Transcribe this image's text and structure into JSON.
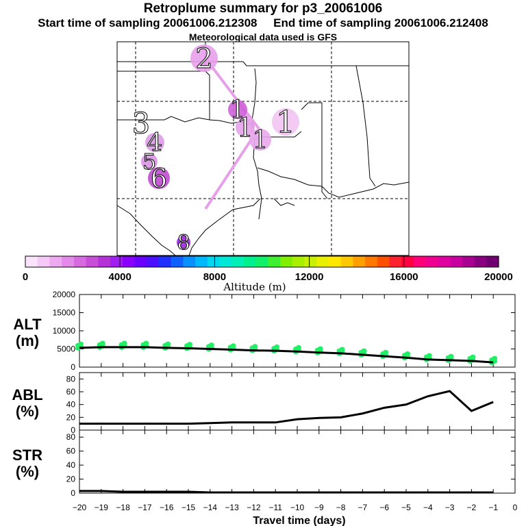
{
  "header": {
    "title": "Retroplume summary for p3_20061006",
    "start_label": "Start time of sampling 20061006.212308",
    "end_label": "End time of sampling 20061006.212408",
    "met_label": "Meteorological data used is GFS"
  },
  "map": {
    "markers": [
      {
        "label": "2",
        "color": "#e8a0ea"
      },
      {
        "label": "1",
        "color": "#cf61d8"
      },
      {
        "label": "1",
        "color": "#f2c4f2"
      },
      {
        "label": "1",
        "color": "#e6a2ea"
      },
      {
        "label": "1",
        "color": "#e8a8ec"
      },
      {
        "label": "3",
        "color": "#f0d0f4"
      },
      {
        "label": "4",
        "color": "#dc9ce6"
      },
      {
        "label": "5",
        "color": "#d894e2"
      },
      {
        "label": "6",
        "color": "#c04ed0"
      },
      {
        "label": "8",
        "color": "#9a28d8"
      }
    ]
  },
  "colorbar": {
    "axis_label": "Altitude (m)",
    "tick_labels": [
      "0",
      "4000",
      "8000",
      "12000",
      "16000",
      "20000"
    ],
    "colors": [
      "#fbe4fb",
      "#f5c8f5",
      "#eeaaf0",
      "#e48ae8",
      "#d86ae0",
      "#c84ed8",
      "#b432d8",
      "#a020f0",
      "#8a00ff",
      "#6a00ff",
      "#4a10ff",
      "#2030ff",
      "#1060ff",
      "#0890ff",
      "#00b8ff",
      "#00d8f0",
      "#00e8d8",
      "#00f0b8",
      "#00f090",
      "#10f068",
      "#40f030",
      "#80f000",
      "#a8f000",
      "#c8f000",
      "#e8f000",
      "#ffe800",
      "#ffc800",
      "#ffa000",
      "#ff7800",
      "#ff5000",
      "#ff2030",
      "#ff0040",
      "#ff0078",
      "#f00090",
      "#e000a0",
      "#c800a0",
      "#a80090",
      "#880080",
      "#700070"
    ]
  },
  "chart_data": [
    {
      "type": "line",
      "name": "ALT",
      "ylabel": "ALT (m)",
      "ylabel_line1": "ALT",
      "ylabel_line2": "(m)",
      "ylim": [
        0,
        20000
      ],
      "yticks": [
        "0",
        "5000",
        "10000",
        "15000",
        "20000"
      ],
      "x": [
        -20,
        -19,
        -18,
        -17,
        -16,
        -15,
        -14,
        -13,
        -12,
        -11,
        -10,
        -9,
        -8,
        -7,
        -6,
        -5,
        -4,
        -3,
        -2,
        -1
      ],
      "values": [
        5300,
        5500,
        5500,
        5500,
        5300,
        5200,
        5000,
        4800,
        4600,
        4500,
        4300,
        4000,
        3800,
        3400,
        3000,
        2600,
        2100,
        1900,
        1700,
        1300
      ],
      "scatter_color": "#22ee66"
    },
    {
      "type": "line",
      "name": "ABL",
      "ylabel": "ABL (%)",
      "ylabel_line1": "ABL",
      "ylabel_line2": "(%)",
      "ylim": [
        0,
        90
      ],
      "yticks": [
        "0",
        "20",
        "40",
        "60",
        "80"
      ],
      "x": [
        -20,
        -19,
        -18,
        -17,
        -16,
        -15,
        -14,
        -13,
        -12,
        -11,
        -10,
        -9,
        -8,
        -7,
        -6,
        -5,
        -4,
        -3,
        -2,
        -1
      ],
      "values": [
        10,
        10,
        10,
        10,
        10,
        10,
        11,
        12,
        12,
        12,
        17,
        19,
        20,
        26,
        35,
        40,
        53,
        61,
        30,
        44
      ]
    },
    {
      "type": "line",
      "name": "STR",
      "ylabel": "STR (%)",
      "ylabel_line1": "STR",
      "ylabel_line2": "(%)",
      "ylim": [
        0,
        90
      ],
      "yticks": [
        "0",
        "20",
        "40",
        "60",
        "80"
      ],
      "x": [
        -20,
        -19,
        -18,
        -17,
        -16,
        -15,
        -14,
        -13,
        -12,
        -11,
        -10,
        -9,
        -8,
        -7,
        -6,
        -5,
        -4,
        -3,
        -2,
        -1
      ],
      "values": [
        3,
        3,
        2,
        2,
        2,
        2,
        1,
        1,
        1,
        1,
        1,
        1,
        1,
        1,
        1,
        1,
        1,
        1,
        1,
        1
      ]
    }
  ],
  "x_axis": {
    "xlabel": "Travel time (days)",
    "xlim": [
      -20,
      0
    ],
    "tick_labels": [
      "−20",
      "−19",
      "−18",
      "−17",
      "−16",
      "−15",
      "−14",
      "−13",
      "−12",
      "−11",
      "−10",
      "−9",
      "−8",
      "−7",
      "−6",
      "−5",
      "−4",
      "−3",
      "−2",
      "−1",
      "0"
    ]
  }
}
